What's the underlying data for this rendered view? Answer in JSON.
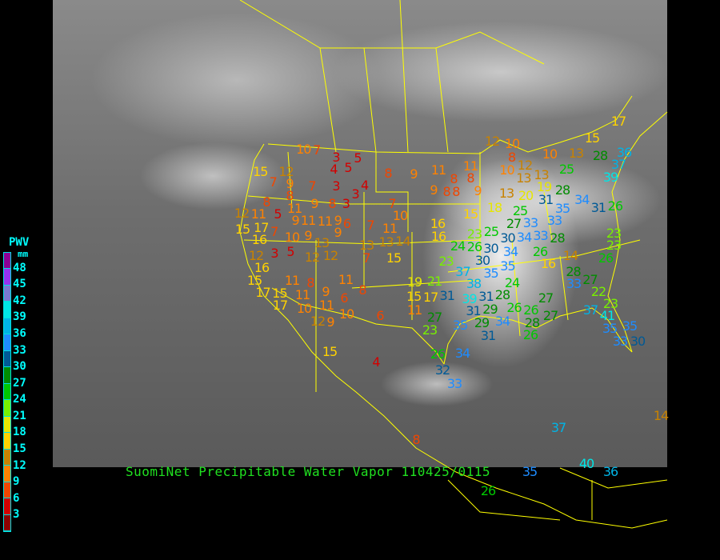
{
  "title": "SuomiNet Precipitable Water Vapor 110425/0115",
  "legend": {
    "title": "PWV",
    "unit": "mm",
    "ticks": [
      "48",
      "45",
      "42",
      "39",
      "36",
      "33",
      "30",
      "27",
      "24",
      "21",
      "18",
      "15",
      "12",
      "9",
      "6",
      "3"
    ],
    "colors_top_to_bottom": [
      "#8c0096",
      "#9632f0",
      "#7878d2",
      "#00e6e6",
      "#00b4e6",
      "#1e8cff",
      "#005a96",
      "#008c00",
      "#00c800",
      "#78f000",
      "#e6e600",
      "#ffd200",
      "#c88200",
      "#ff8200",
      "#f04600",
      "#d20000",
      "#8c0000"
    ]
  },
  "stations": [
    10,
    7,
    3,
    5,
    4,
    5,
    8,
    9,
    11,
    15,
    12,
    7,
    9,
    7,
    3,
    4,
    3,
    8,
    8,
    11,
    9,
    8,
    3,
    7,
    9,
    8,
    12,
    11,
    5,
    9,
    11,
    11,
    9,
    6,
    7,
    10,
    15,
    17,
    16,
    7,
    9,
    10,
    9,
    11,
    16,
    13,
    3,
    5,
    12,
    12,
    13,
    13,
    14,
    7,
    15,
    23,
    12,
    16,
    15,
    17,
    11,
    8,
    11,
    19,
    21,
    15,
    11,
    9,
    6,
    8,
    15,
    17,
    31,
    17,
    10,
    11,
    10,
    6,
    11,
    27,
    23,
    12,
    9,
    12,
    10,
    15,
    10,
    13,
    28,
    36,
    11,
    8,
    8,
    8,
    9,
    10,
    8,
    12,
    13,
    13,
    25,
    37,
    39,
    19,
    28,
    13,
    20,
    31,
    34,
    35,
    31,
    26,
    15,
    18,
    25,
    27,
    33,
    33,
    16,
    23,
    25,
    30,
    34,
    33,
    28,
    24,
    26,
    30,
    34,
    23,
    23,
    30,
    35,
    26,
    16,
    14,
    26,
    37,
    38,
    35,
    28,
    33,
    27,
    39,
    31,
    28,
    24,
    27,
    22,
    26,
    29,
    31,
    37,
    41,
    23,
    26,
    27,
    35,
    29,
    34,
    28,
    35,
    35,
    26,
    31,
    33,
    30,
    26,
    34,
    32,
    33,
    15,
    4,
    8,
    37,
    40,
    35,
    36,
    26,
    17,
    14
  ]
}
